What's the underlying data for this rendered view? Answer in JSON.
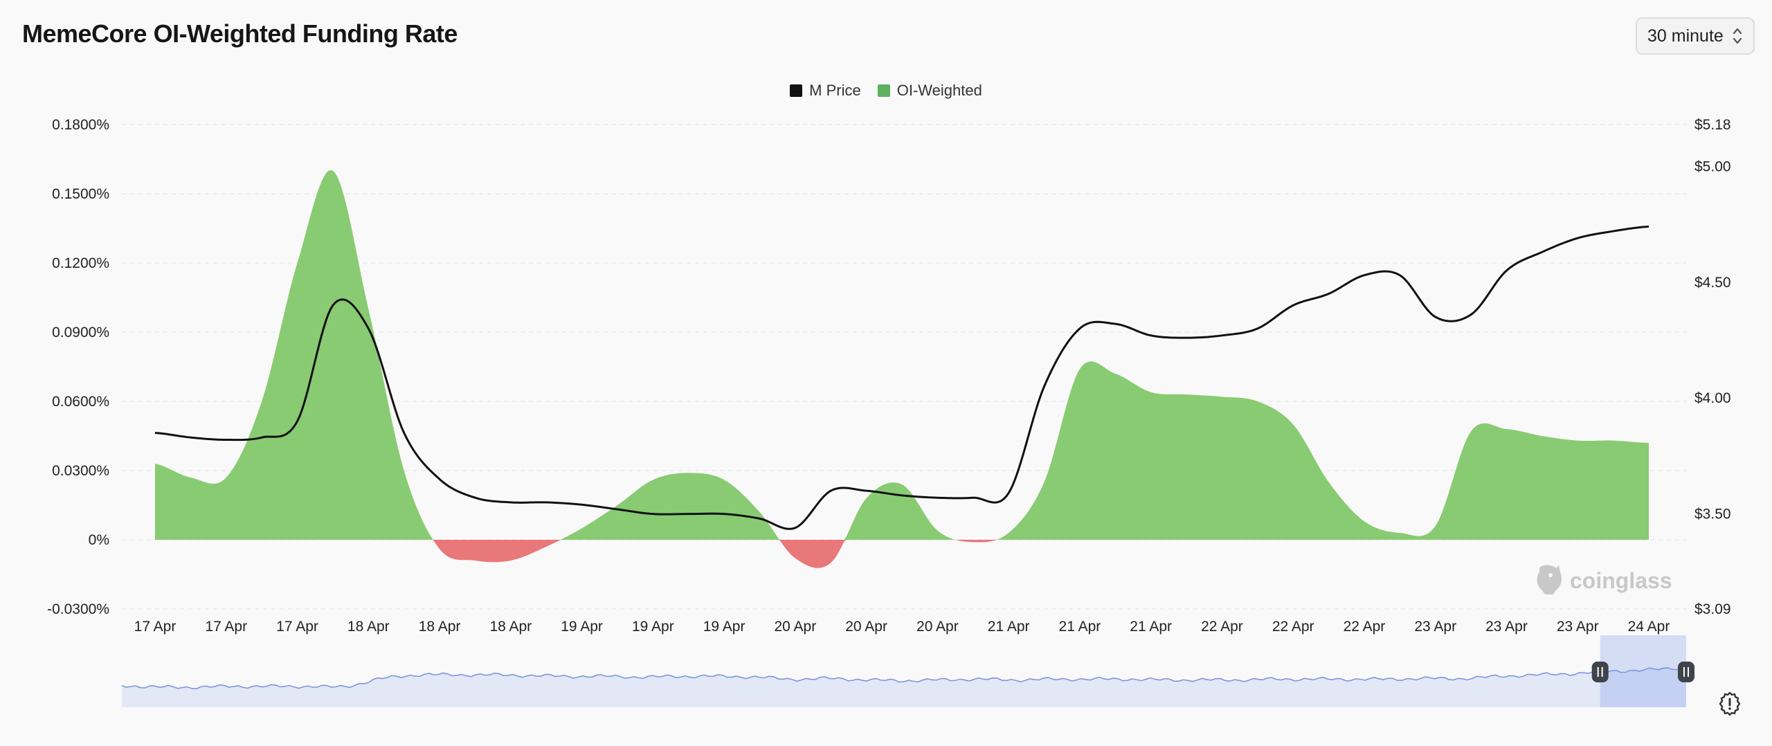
{
  "header": {
    "title": "MemeCore OI-Weighted Funding Rate"
  },
  "interval": {
    "selected": "30 minute"
  },
  "watermark": {
    "text": "coinglass"
  },
  "colors": {
    "positive": "#89cb72",
    "negative": "#e8787a",
    "price": "#111111",
    "navigator": "#7c97dc"
  },
  "chart_data": {
    "type": "area",
    "legend": [
      {
        "name": "M Price",
        "color": "#111111"
      },
      {
        "name": "OI-Weighted",
        "color": "#5db160"
      }
    ],
    "left_axis": {
      "ticks": [
        "0.1800%",
        "0.1500%",
        "0.1200%",
        "0.0900%",
        "0.0600%",
        "0.0300%",
        "0%",
        "-0.0300%"
      ],
      "min": -0.03,
      "max": 0.18
    },
    "right_axis": {
      "ticks": [
        "$5.18",
        "$5.00",
        "$4.50",
        "$4.00",
        "$3.50",
        "$3.09"
      ],
      "values": [
        5.18,
        5.0,
        4.5,
        4.0,
        3.5,
        3.09
      ],
      "min": 3.09,
      "max": 5.18
    },
    "x_labels": [
      "17 Apr",
      "17 Apr",
      "17 Apr",
      "18 Apr",
      "18 Apr",
      "18 Apr",
      "19 Apr",
      "19 Apr",
      "19 Apr",
      "20 Apr",
      "20 Apr",
      "20 Apr",
      "21 Apr",
      "21 Apr",
      "21 Apr",
      "22 Apr",
      "22 Apr",
      "22 Apr",
      "23 Apr",
      "23 Apr",
      "23 Apr",
      "24 Apr"
    ],
    "series": [
      {
        "name": "OI-Weighted",
        "kind": "area",
        "x": [
          0,
          0.5,
          1,
          1.5,
          2,
          2.5,
          3,
          3.5,
          4,
          4.5,
          5,
          5.5,
          6,
          6.5,
          7,
          7.5,
          8,
          8.5,
          9,
          9.5,
          10,
          10.5,
          11,
          11.5,
          12,
          12.5,
          13,
          13.5,
          14,
          14.5,
          15,
          15.5,
          16,
          16.5,
          17,
          17.5,
          18,
          18.5,
          19,
          19.5,
          20,
          20.5,
          21
        ],
        "values": [
          0.033,
          0.027,
          0.027,
          0.06,
          0.12,
          0.16,
          0.1,
          0.03,
          -0.004,
          -0.009,
          -0.009,
          -0.003,
          0.005,
          0.015,
          0.026,
          0.029,
          0.026,
          0.012,
          -0.008,
          -0.01,
          0.018,
          0.024,
          0.004,
          -0.001,
          0.003,
          0.025,
          0.074,
          0.072,
          0.064,
          0.063,
          0.062,
          0.06,
          0.05,
          0.025,
          0.008,
          0.003,
          0.006,
          0.047,
          0.048,
          0.045,
          0.043,
          0.043,
          0.042
        ]
      },
      {
        "name": "M Price",
        "kind": "line",
        "x": [
          0,
          0.5,
          1,
          1.5,
          2,
          2.5,
          3,
          3.5,
          4,
          4.5,
          5,
          5.5,
          6,
          6.5,
          7,
          7.5,
          8,
          8.5,
          9,
          9.5,
          10,
          10.5,
          11,
          11.5,
          12,
          12.5,
          13,
          13.5,
          14,
          14.5,
          15,
          15.5,
          16,
          16.5,
          17,
          17.5,
          18,
          18.5,
          19,
          19.5,
          20,
          20.5,
          21
        ],
        "values": [
          3.85,
          3.83,
          3.82,
          3.83,
          3.9,
          4.4,
          4.3,
          3.85,
          3.65,
          3.57,
          3.55,
          3.55,
          3.54,
          3.52,
          3.5,
          3.5,
          3.5,
          3.48,
          3.44,
          3.6,
          3.6,
          3.58,
          3.57,
          3.57,
          3.59,
          4.05,
          4.3,
          4.32,
          4.27,
          4.26,
          4.27,
          4.3,
          4.4,
          4.45,
          4.53,
          4.53,
          4.35,
          4.36,
          4.55,
          4.63,
          4.69,
          4.72,
          4.74
        ]
      }
    ],
    "navigator": {
      "values": [
        0.3,
        0.28,
        0.28,
        0.29,
        0.29,
        0.29,
        0.29,
        0.4,
        0.45,
        0.45,
        0.45,
        0.44,
        0.43,
        0.43,
        0.42,
        0.43,
        0.43,
        0.42,
        0.39,
        0.4,
        0.38,
        0.37,
        0.38,
        0.39,
        0.38,
        0.39,
        0.39,
        0.39,
        0.38,
        0.38,
        0.38,
        0.39,
        0.39,
        0.39,
        0.39,
        0.4,
        0.4,
        0.43,
        0.45,
        0.47,
        0.5,
        0.52,
        0.55
      ],
      "range": [
        0.945,
        1.0
      ]
    }
  }
}
